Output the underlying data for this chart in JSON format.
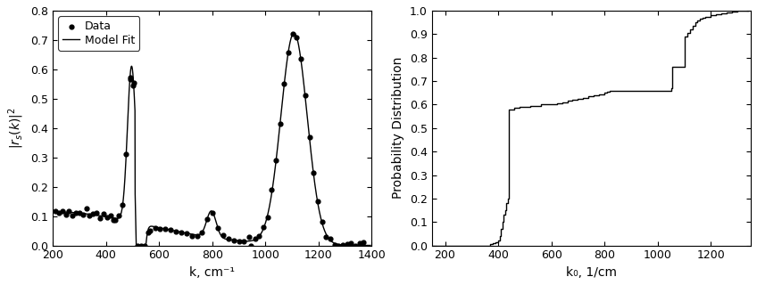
{
  "left": {
    "xlabel": "k, cm⁻¹",
    "ylabel": "$|r_s(k)|^2$",
    "xlim": [
      200,
      1400
    ],
    "ylim": [
      0,
      0.8
    ],
    "xticks": [
      200,
      400,
      600,
      800,
      1000,
      1200,
      1400
    ],
    "yticks": [
      0.0,
      0.1,
      0.2,
      0.3,
      0.4,
      0.5,
      0.6,
      0.7,
      0.8
    ],
    "legend_labels": [
      "Data",
      "Model Fit"
    ]
  },
  "right": {
    "xlabel": "k₀, 1/cm",
    "ylabel": "Probability Distribution",
    "xlim": [
      150,
      1350
    ],
    "ylim": [
      0,
      1.0
    ],
    "xticks": [
      200,
      400,
      600,
      800,
      1000,
      1200
    ],
    "yticks": [
      0.0,
      0.1,
      0.2,
      0.3,
      0.4,
      0.5,
      0.6,
      0.7,
      0.8,
      0.9,
      1.0
    ]
  },
  "line_color": "#000000",
  "dot_color": "#000000",
  "background": "#ffffff",
  "cdf_k": [
    150,
    160,
    170,
    180,
    200,
    220,
    240,
    260,
    280,
    300,
    320,
    340,
    360,
    370,
    375,
    380,
    385,
    390,
    395,
    400,
    405,
    410,
    415,
    420,
    425,
    430,
    435,
    440,
    445,
    450,
    460,
    470,
    480,
    490,
    500,
    520,
    540,
    560,
    580,
    600,
    620,
    640,
    660,
    680,
    700,
    720,
    740,
    760,
    780,
    800,
    810,
    820,
    830,
    840,
    850,
    870,
    890,
    910,
    930,
    950,
    970,
    990,
    1010,
    1030,
    1040,
    1050,
    1055,
    1060,
    1065,
    1070,
    1080,
    1090,
    1100,
    1110,
    1120,
    1130,
    1140,
    1150,
    1160,
    1170,
    1180,
    1200,
    1220,
    1240,
    1260,
    1280,
    1300,
    1340
  ],
  "cdf_y": [
    0.0,
    0.0,
    0.0,
    0.0,
    0.0,
    0.0,
    0.0,
    0.0,
    0.0,
    0.0,
    0.0,
    0.0,
    0.0,
    0.005,
    0.007,
    0.01,
    0.01,
    0.012,
    0.015,
    0.02,
    0.04,
    0.07,
    0.1,
    0.13,
    0.15,
    0.18,
    0.2,
    0.58,
    0.58,
    0.58,
    0.585,
    0.585,
    0.59,
    0.59,
    0.59,
    0.595,
    0.595,
    0.6,
    0.6,
    0.6,
    0.605,
    0.61,
    0.615,
    0.62,
    0.625,
    0.63,
    0.635,
    0.64,
    0.645,
    0.65,
    0.655,
    0.66,
    0.66,
    0.66,
    0.66,
    0.66,
    0.66,
    0.66,
    0.66,
    0.66,
    0.66,
    0.66,
    0.66,
    0.66,
    0.66,
    0.67,
    0.76,
    0.76,
    0.76,
    0.76,
    0.76,
    0.76,
    0.89,
    0.905,
    0.92,
    0.935,
    0.95,
    0.958,
    0.965,
    0.97,
    0.975,
    0.98,
    0.985,
    0.99,
    0.993,
    0.995,
    0.998,
    1.0
  ]
}
